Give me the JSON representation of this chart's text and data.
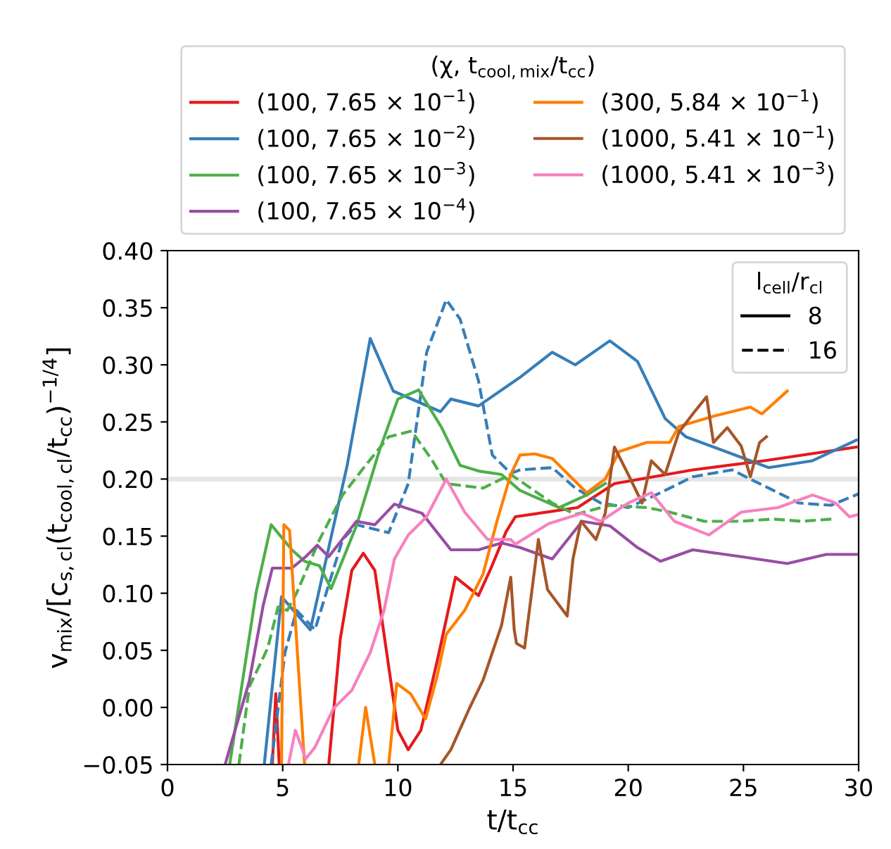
{
  "chart_data": {
    "type": "line",
    "xlabel": "t/t$_{cc}$",
    "ylabel": "v$_{mix}$/[c$_{s,cl}$(t$_{cool,cl}$/t$_{cc}$)$^{−1/4}$]",
    "legend_title": "(χ, t$_{cool,mix}$/t$_{cc}$)",
    "legend": "top",
    "grid": false,
    "xlim": [
      0,
      30
    ],
    "xticks": [
      0,
      5,
      10,
      15,
      20,
      25,
      30
    ],
    "ylim": [
      -0.05,
      0.4
    ],
    "yticks": [
      {
        "value": -0.05,
        "label": "−0.05"
      },
      {
        "value": 0.0,
        "label": "0.00"
      },
      {
        "value": 0.05,
        "label": "0.05"
      },
      {
        "value": 0.1,
        "label": "0.10"
      },
      {
        "value": 0.15,
        "label": "0.15"
      },
      {
        "value": 0.2,
        "label": "0.20"
      },
      {
        "value": 0.25,
        "label": "0.25"
      },
      {
        "value": 0.3,
        "label": "0.30"
      },
      {
        "value": 0.35,
        "label": "0.35"
      },
      {
        "value": 0.4,
        "label": "0.40"
      }
    ],
    "ref_lines": [
      {
        "axis": "y",
        "value": 0.2,
        "color": "#e6e6e6"
      }
    ],
    "annotations": [
      "l$_{cell}$/r$_{cl}$",
      "8",
      "16"
    ],
    "series": [
      {
        "name": "(100, 7.65 × 10$^{−1}$)",
        "color": "#e41a1c",
        "line_style": "solid",
        "x": [
          4.55,
          4.7,
          4.85,
          6.0,
          7.0,
          7.5,
          8.0,
          8.5,
          9.0,
          9.5,
          10.0,
          10.45,
          11.0,
          11.7,
          12.5,
          13.5,
          14.0,
          14.7,
          15.1,
          17.8,
          19.4,
          22.8,
          25.9,
          29.9
        ],
        "values": [
          -0.05,
          0.012,
          -0.05,
          null,
          -0.05,
          0.06,
          0.12,
          0.135,
          0.12,
          0.05,
          -0.02,
          -0.037,
          -0.02,
          0.04,
          0.114,
          0.098,
          0.12,
          0.154,
          0.167,
          0.175,
          0.196,
          0.208,
          0.216,
          0.228
        ]
      },
      {
        "name": "(100, 7.65 × 10$^{−2}$)",
        "color": "#377eb8",
        "line_style": "solid",
        "x": [
          4.2,
          4.95,
          6.2,
          7.8,
          8.8,
          9.8,
          11.85,
          12.3,
          13.5,
          15.3,
          16.7,
          17.7,
          19.2,
          20.4,
          21.6,
          22.5,
          26.1,
          28.0,
          29.9
        ],
        "values": [
          -0.05,
          0.097,
          0.068,
          0.212,
          0.323,
          0.277,
          0.259,
          0.27,
          0.264,
          0.289,
          0.311,
          0.3,
          0.321,
          0.303,
          0.253,
          0.237,
          0.21,
          0.216,
          0.234
        ]
      },
      {
        "color": "#377eb8",
        "line_style": "dashed",
        "x": [
          4.5,
          5.1,
          5.6,
          6.4,
          7.6,
          8.2,
          9.6,
          10.45,
          11.25,
          12.1,
          12.7,
          13.5,
          14.1,
          14.9,
          15.3,
          16.7,
          17.7,
          18.8,
          20.0,
          21.4,
          22.8,
          24.5,
          26.1,
          27.4,
          28.8,
          30.0
        ],
        "values": [
          -0.05,
          0.048,
          0.085,
          0.068,
          0.147,
          0.16,
          0.153,
          0.196,
          0.311,
          0.357,
          0.34,
          0.286,
          0.221,
          0.205,
          0.208,
          0.21,
          0.192,
          0.179,
          0.175,
          0.188,
          0.202,
          0.208,
          0.192,
          0.179,
          0.177,
          0.187
        ]
      },
      {
        "name": "(100, 7.65 × 10$^{−3}$)",
        "color": "#4daf4a",
        "line_style": "solid",
        "x": [
          2.7,
          3.85,
          4.5,
          5.4,
          5.95,
          6.6,
          7.1,
          8.2,
          9.2,
          10.0,
          10.9,
          11.9,
          12.7,
          13.5,
          14.5,
          15.3,
          17.0,
          18.2,
          19.0
        ],
        "values": [
          -0.05,
          0.101,
          0.16,
          0.138,
          0.128,
          0.124,
          0.104,
          0.159,
          0.225,
          0.27,
          0.278,
          0.245,
          0.212,
          0.207,
          0.204,
          0.19,
          0.175,
          0.186,
          0.196
        ]
      },
      {
        "color": "#4daf4a",
        "line_style": "dashed",
        "x": [
          3.1,
          3.55,
          4.35,
          4.8,
          5.2,
          5.6,
          6.6,
          7.6,
          8.6,
          9.6,
          10.6,
          11.5,
          12.1,
          13.7,
          14.9,
          16.7,
          17.7,
          19.2,
          20.8,
          21.8,
          23.3,
          24.9,
          26.3,
          27.5,
          28.9
        ],
        "values": [
          -0.05,
          0.018,
          0.052,
          0.088,
          0.085,
          0.1,
          0.147,
          0.186,
          0.212,
          0.237,
          0.242,
          0.216,
          0.196,
          0.192,
          0.204,
          0.179,
          0.169,
          0.177,
          0.175,
          0.171,
          0.163,
          0.163,
          0.165,
          0.163,
          0.165
        ]
      },
      {
        "name": "(100, 7.65 × 10$^{−4}$)",
        "color": "#984ea3",
        "line_style": "solid",
        "x": [
          2.5,
          3.55,
          4.15,
          4.55,
          5.4,
          6.0,
          6.5,
          7.0,
          8.2,
          9.0,
          9.85,
          11.05,
          12.3,
          13.5,
          14.5,
          15.3,
          16.7,
          18.0,
          19.2,
          20.4,
          21.4,
          22.8,
          24.9,
          26.9,
          28.6,
          30.0
        ],
        "values": [
          -0.05,
          0.023,
          0.089,
          0.122,
          0.122,
          0.132,
          0.142,
          0.132,
          0.163,
          0.16,
          0.178,
          0.17,
          0.138,
          0.138,
          0.144,
          0.14,
          0.13,
          0.163,
          0.159,
          0.14,
          0.128,
          0.138,
          0.132,
          0.126,
          0.134,
          0.134
        ]
      },
      {
        "name": "(300, 5.84 × 10$^{−1}$)",
        "color": "#ff7f00",
        "line_style": "solid",
        "x": [
          4.95,
          5.05,
          5.3,
          5.6,
          5.95,
          7.0,
          8.3,
          8.6,
          9.0,
          9.3,
          9.6,
          9.95,
          10.55,
          11.2,
          11.7,
          12.1,
          12.9,
          13.7,
          14.3,
          14.9,
          15.3,
          15.95,
          16.7,
          17.8,
          18.2,
          19.0,
          19.6,
          20.8,
          21.8,
          22.2,
          23.7,
          25.3,
          25.8,
          26.9
        ],
        "values": [
          -0.05,
          0.16,
          0.155,
          0.06,
          -0.05,
          null,
          -0.05,
          0.0,
          -0.05,
          null,
          -0.05,
          0.021,
          0.012,
          -0.01,
          0.027,
          0.064,
          0.085,
          0.117,
          0.163,
          0.204,
          0.221,
          0.222,
          0.218,
          0.196,
          0.188,
          0.2,
          0.224,
          0.232,
          0.232,
          0.246,
          0.255,
          0.263,
          0.257,
          0.277
        ]
      },
      {
        "name": "(1000, 5.41 × 10$^{−1}$)",
        "color": "#a65628",
        "line_style": "solid",
        "x": [
          11.85,
          12.3,
          13.1,
          13.7,
          14.1,
          14.5,
          14.9,
          15.05,
          15.15,
          15.5,
          16.1,
          16.5,
          17.35,
          17.6,
          17.95,
          18.6,
          19.0,
          19.4,
          20.0,
          20.6,
          21.0,
          21.6,
          22.2,
          22.8,
          23.4,
          23.7,
          24.3,
          24.9,
          25.3,
          25.7,
          26.0
        ],
        "values": [
          -0.05,
          -0.037,
          -0.001,
          0.024,
          0.048,
          0.072,
          0.114,
          0.068,
          0.056,
          0.052,
          0.147,
          0.103,
          0.08,
          0.13,
          0.163,
          0.147,
          0.17,
          0.228,
          0.204,
          0.179,
          0.216,
          0.204,
          0.241,
          0.257,
          0.272,
          0.232,
          0.245,
          0.229,
          0.202,
          0.232,
          0.237
        ]
      },
      {
        "name": "(1000, 5.41 × 10$^{−3}$)",
        "color": "#f781bf",
        "line_style": "solid",
        "x": [
          5.25,
          5.55,
          6.0,
          6.4,
          7.2,
          8.0,
          8.8,
          9.4,
          9.85,
          10.45,
          11.25,
          12.1,
          12.9,
          13.9,
          14.9,
          15.1,
          16.55,
          18.0,
          18.8,
          20.0,
          21.0,
          22.0,
          23.5,
          24.9,
          26.5,
          28.0,
          29.0,
          29.6,
          30.0
        ],
        "values": [
          -0.05,
          -0.02,
          -0.045,
          -0.035,
          -0.001,
          0.015,
          0.048,
          0.085,
          0.13,
          0.151,
          0.167,
          0.2,
          0.171,
          0.147,
          0.147,
          0.143,
          0.161,
          0.17,
          0.163,
          0.179,
          0.188,
          0.163,
          0.151,
          0.171,
          0.175,
          0.186,
          0.179,
          0.167,
          0.169
        ]
      }
    ]
  }
}
